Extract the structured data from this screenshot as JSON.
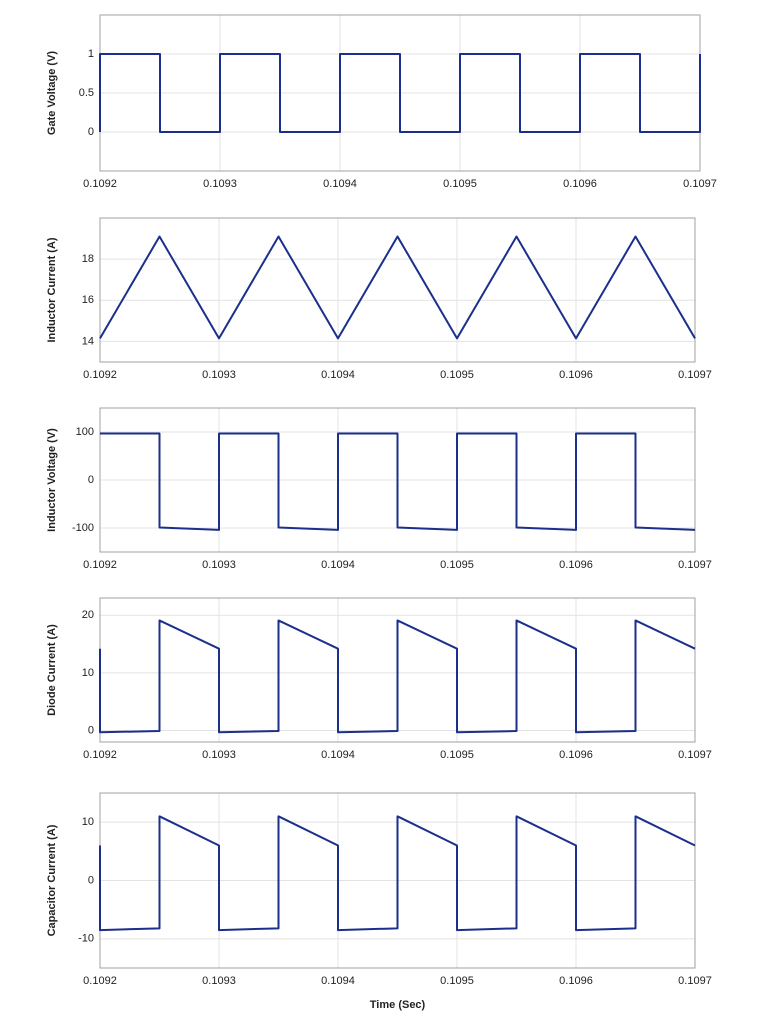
{
  "chart_data": [
    {
      "type": "line",
      "ylabel": "Gate Voltage (V)",
      "color": "#1b2f8c",
      "grid": true,
      "xlim": [
        0.1092,
        0.1097
      ],
      "xticks": [
        0.1092,
        0.1093,
        0.1094,
        0.1095,
        0.1096,
        0.1097
      ],
      "ylim": [
        -0.5,
        1.5
      ],
      "yticks": [
        0,
        0.5,
        1
      ],
      "x": [
        0.1092,
        0.1092,
        0.10925,
        0.10925,
        0.1093,
        0.1093,
        0.10935,
        0.10935,
        0.1094,
        0.1094,
        0.10945,
        0.10945,
        0.1095,
        0.1095,
        0.10955,
        0.10955,
        0.1096,
        0.1096,
        0.10965,
        0.10965,
        0.1097,
        0.1097
      ],
      "values": [
        0,
        1,
        1,
        0,
        0,
        1,
        1,
        0,
        0,
        1,
        1,
        0,
        0,
        1,
        1,
        0,
        0,
        1,
        1,
        0,
        0,
        1
      ]
    },
    {
      "type": "line",
      "ylabel": "Inductor Current (A)",
      "color": "#1b2f8c",
      "grid": true,
      "xlim": [
        0.1092,
        0.1097
      ],
      "xticks": [
        0.1092,
        0.1093,
        0.1094,
        0.1095,
        0.1096,
        0.1097
      ],
      "ylim": [
        13,
        20
      ],
      "yticks": [
        14,
        16,
        18
      ],
      "x": [
        0.1092,
        0.10925,
        0.1093,
        0.10935,
        0.1094,
        0.10945,
        0.1095,
        0.10955,
        0.1096,
        0.10965,
        0.1097
      ],
      "values": [
        14.15,
        19.1,
        14.15,
        19.1,
        14.15,
        19.1,
        14.15,
        19.1,
        14.15,
        19.1,
        14.15
      ]
    },
    {
      "type": "line",
      "ylabel": "Inductor Voltage (V)",
      "color": "#1b2f8c",
      "grid": true,
      "xlim": [
        0.1092,
        0.1097
      ],
      "xticks": [
        0.1092,
        0.1093,
        0.1094,
        0.1095,
        0.1096,
        0.1097
      ],
      "ylim": [
        -150,
        150
      ],
      "yticks": [
        -100,
        0,
        100
      ],
      "x": [
        0.1092,
        0.10925,
        0.10925,
        0.1093,
        0.1093,
        0.10935,
        0.10935,
        0.1094,
        0.1094,
        0.10945,
        0.10945,
        0.1095,
        0.1095,
        0.10955,
        0.10955,
        0.1096,
        0.1096,
        0.10965,
        0.10965,
        0.1097
      ],
      "values": [
        97,
        97,
        -99,
        -104,
        97,
        97,
        -99,
        -104,
        97,
        97,
        -99,
        -104,
        97,
        97,
        -99,
        -104,
        97,
        97,
        -99,
        -104
      ]
    },
    {
      "type": "line",
      "ylabel": "Diode Current (A)",
      "color": "#1b2f8c",
      "grid": true,
      "xlim": [
        0.1092,
        0.1097
      ],
      "xticks": [
        0.1092,
        0.1093,
        0.1094,
        0.1095,
        0.1096,
        0.1097
      ],
      "ylim": [
        -2,
        23
      ],
      "yticks": [
        0,
        10,
        20
      ],
      "x": [
        0.1092,
        0.1092,
        0.10925,
        0.10925,
        0.1093,
        0.1093,
        0.10935,
        0.10935,
        0.1094,
        0.1094,
        0.10945,
        0.10945,
        0.1095,
        0.1095,
        0.10955,
        0.10955,
        0.1096,
        0.1096,
        0.10965,
        0.10965,
        0.1097
      ],
      "values": [
        14.2,
        -0.3,
        -0.1,
        19.1,
        14.2,
        -0.3,
        -0.1,
        19.1,
        14.2,
        -0.3,
        -0.1,
        19.1,
        14.2,
        -0.3,
        -0.1,
        19.1,
        14.2,
        -0.3,
        -0.1,
        19.1,
        14.2
      ]
    },
    {
      "type": "line",
      "ylabel": "Capacitor Current (A)",
      "xlabel": "Time (Sec)",
      "color": "#1b2f8c",
      "grid": true,
      "xlim": [
        0.1092,
        0.1097
      ],
      "xticks": [
        0.1092,
        0.1093,
        0.1094,
        0.1095,
        0.1096,
        0.1097
      ],
      "ylim": [
        -15,
        15
      ],
      "yticks": [
        -10,
        0,
        10
      ],
      "x": [
        0.1092,
        0.1092,
        0.10925,
        0.10925,
        0.1093,
        0.1093,
        0.10935,
        0.10935,
        0.1094,
        0.1094,
        0.10945,
        0.10945,
        0.1095,
        0.1095,
        0.10955,
        0.10955,
        0.1096,
        0.1096,
        0.10965,
        0.10965,
        0.1097
      ],
      "values": [
        6,
        -8.5,
        -8.2,
        11,
        6,
        -8.5,
        -8.2,
        11,
        6,
        -8.5,
        -8.2,
        11,
        6,
        -8.5,
        -8.2,
        11,
        6,
        -8.5,
        -8.2,
        11,
        6
      ]
    }
  ]
}
